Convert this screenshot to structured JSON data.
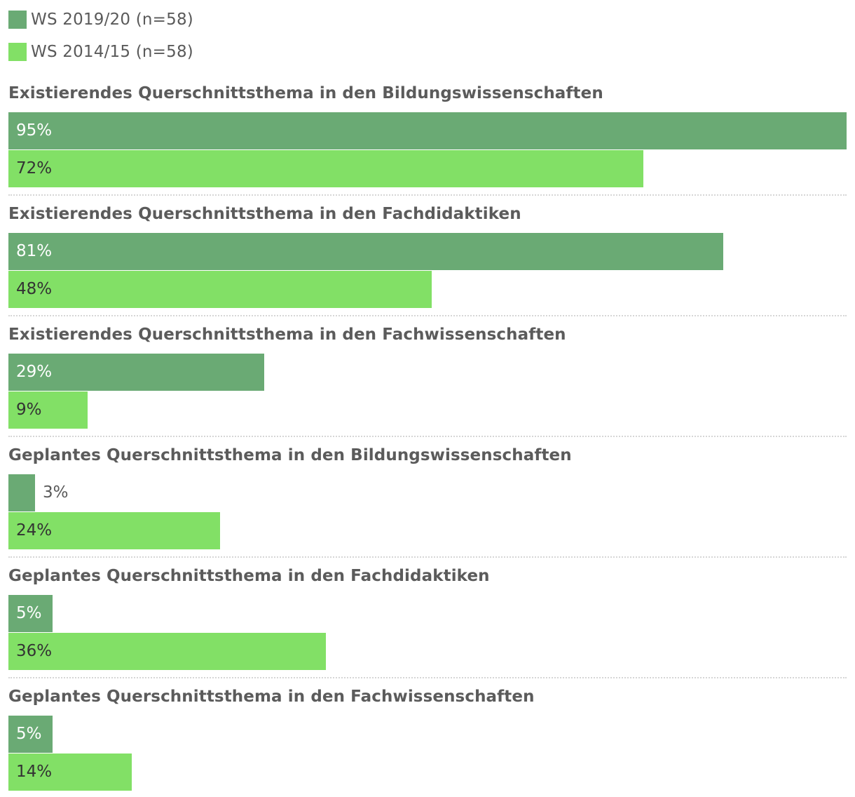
{
  "chart_data": {
    "type": "bar",
    "orientation": "horizontal",
    "unit": "%",
    "xlim": [
      0,
      95
    ],
    "grid": false,
    "legend_position": "top-left",
    "series": [
      {
        "name": "WS 2019/20 (n=58)",
        "color": "#6aaa74",
        "values": [
          95,
          81,
          29,
          3,
          5,
          5
        ]
      },
      {
        "name": "WS 2014/15 (n=58)",
        "color": "#82e066",
        "values": [
          72,
          48,
          9,
          24,
          36,
          14
        ]
      }
    ],
    "categories": [
      "Existierendes Querschnittsthema in den Bildungswissenschaften",
      "Existierendes Querschnittsthema in den Fachdidaktiken",
      "Existierendes Querschnittsthema in den Fachwissenschaften",
      "Geplantes Querschnittsthema in den Bildungswissenschaften",
      "Geplantes Querschnittsthema in den Fachdidaktiken",
      "Geplantes Querschnittsthema in den Fachwissenschaften"
    ]
  }
}
